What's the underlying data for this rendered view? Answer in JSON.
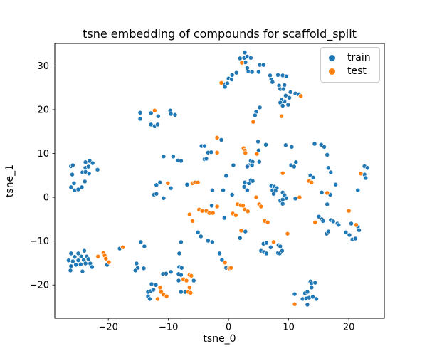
{
  "chart_data": {
    "type": "scatter",
    "title": "tsne embedding of compounds for scaffold_split",
    "xlabel": "tsne_0",
    "ylabel": "tsne_1",
    "xlim": [
      -28.9,
      25.9
    ],
    "ylim": [
      -27.6,
      35.1
    ],
    "xticks": {
      "values": [
        -20,
        -10,
        0,
        10,
        20
      ],
      "labels": [
        "−20",
        "−10",
        "0",
        "10",
        "20"
      ]
    },
    "yticks": {
      "values": [
        -20,
        -10,
        0,
        10,
        20,
        30
      ],
      "labels": [
        "−20",
        "−10",
        "0",
        "10",
        "20",
        "30"
      ]
    },
    "grid": false,
    "legend_position": "upper right",
    "marker": {
      "radius": 3.1,
      "edge_color": "#ffffff"
    },
    "axis_color": "#000000",
    "background_color": "#ffffff",
    "series": [
      {
        "name": "train",
        "color": "#1f77b4",
        "points": [
          [
            -14.7,
            19.3
          ],
          [
            -14.7,
            17.9
          ],
          [
            -12.9,
            19.2
          ],
          [
            -11.7,
            18.5
          ],
          [
            -12.9,
            16.6
          ],
          [
            -12.3,
            16.2
          ],
          [
            -11.8,
            16.6
          ],
          [
            -9.7,
            19.8
          ],
          [
            -9.6,
            19.0
          ],
          [
            -8.9,
            18.8
          ],
          [
            2.7,
            33.0
          ],
          [
            1.9,
            31.7
          ],
          [
            2.6,
            31.8
          ],
          [
            3.1,
            32.1
          ],
          [
            3.7,
            31.8
          ],
          [
            2.8,
            30.8
          ],
          [
            5.2,
            30.2
          ],
          [
            5.8,
            30.2
          ],
          [
            3.3,
            28.7
          ],
          [
            3.9,
            28.6
          ],
          [
            5.0,
            28.6
          ],
          [
            3.1,
            29.5
          ],
          [
            1.3,
            28.4
          ],
          [
            0.6,
            27.9
          ],
          [
            0.0,
            27.1
          ],
          [
            0.5,
            26.9
          ],
          [
            -0.6,
            25.8
          ],
          [
            -0.2,
            26.0
          ],
          [
            -0.6,
            25.2
          ],
          [
            6.9,
            27.8
          ],
          [
            7.1,
            26.9
          ],
          [
            7.3,
            26.3
          ],
          [
            8.2,
            27.9
          ],
          [
            8.4,
            25.5
          ],
          [
            8.6,
            24.7
          ],
          [
            9.0,
            27.8
          ],
          [
            9.6,
            27.6
          ],
          [
            9.3,
            25.6
          ],
          [
            9.1,
            24.7
          ],
          [
            10.3,
            24.0
          ],
          [
            9.5,
            23.2
          ],
          [
            10.1,
            22.7
          ],
          [
            11.1,
            23.7
          ],
          [
            11.7,
            23.5
          ],
          [
            9.3,
            21.9
          ],
          [
            9.9,
            21.1
          ],
          [
            8.8,
            22.2
          ],
          [
            8.6,
            21.6
          ],
          [
            9.0,
            20.9
          ],
          [
            5.2,
            20.5
          ],
          [
            4.6,
            19.5
          ],
          [
            4.4,
            18.7
          ],
          [
            -26.2,
            7.1
          ],
          [
            -25.9,
            7.3
          ],
          [
            -26.0,
            5.2
          ],
          [
            -23.8,
            8.0
          ],
          [
            -23.1,
            8.3
          ],
          [
            -22.6,
            7.8
          ],
          [
            -23.8,
            6.7
          ],
          [
            -23.3,
            7.0
          ],
          [
            -24.3,
            5.7
          ],
          [
            -23.8,
            5.8
          ],
          [
            -23.2,
            5.4
          ],
          [
            -21.8,
            6.3
          ],
          [
            -23.9,
            3.6
          ],
          [
            -25.7,
            3.2
          ],
          [
            -26.2,
            2.3
          ],
          [
            -25.6,
            1.6
          ],
          [
            -25.0,
            1.8
          ],
          [
            -24.4,
            2.3
          ],
          [
            -10.8,
            9.3
          ],
          [
            -12.0,
            2.8
          ],
          [
            -11.4,
            3.4
          ],
          [
            -9.6,
            2.1
          ],
          [
            -12.4,
            0.6
          ],
          [
            -12.0,
            0.8
          ],
          [
            -10.8,
            -0.2
          ],
          [
            -1.2,
            13.1
          ],
          [
            -4.5,
            11.7
          ],
          [
            -4.0,
            11.7
          ],
          [
            -3.4,
            10.2
          ],
          [
            -2.9,
            10.3
          ],
          [
            -4.0,
            8.7
          ],
          [
            -3.7,
            8.8
          ],
          [
            -9.2,
            9.3
          ],
          [
            -8.4,
            8.4
          ],
          [
            -7.9,
            8.3
          ],
          [
            4.9,
            12.7
          ],
          [
            6.2,
            12.0
          ],
          [
            5.0,
            10.7
          ],
          [
            3.7,
            8.3
          ],
          [
            4.0,
            8.1
          ],
          [
            3.4,
            7.3
          ],
          [
            3.9,
            7.3
          ],
          [
            3.1,
            7.0
          ],
          [
            5.1,
            8.1
          ],
          [
            0.8,
            7.3
          ],
          [
            -0.4,
            4.9
          ],
          [
            7.1,
            2.6
          ],
          [
            7.6,
            2.4
          ],
          [
            8.0,
            2.1
          ],
          [
            7.3,
            1.6
          ],
          [
            7.8,
            1.5
          ],
          [
            7.5,
            0.8
          ],
          [
            8.6,
            -0.8
          ],
          [
            9.0,
            -1.5
          ],
          [
            -6.9,
            2.9
          ],
          [
            -2.7,
            1.6
          ],
          [
            -0.9,
            1.6
          ],
          [
            0.6,
            0.6
          ],
          [
            2.7,
            3.4
          ],
          [
            3.4,
            3.2
          ],
          [
            2.6,
            2.4
          ],
          [
            3.1,
            1.6
          ],
          [
            3.7,
            3.9
          ],
          [
            4.0,
            3.7
          ],
          [
            -2.8,
            -1.9
          ],
          [
            -0.7,
            -4.7
          ],
          [
            10.5,
            11.5
          ],
          [
            9.5,
            11.9
          ],
          [
            14.3,
            12.2
          ],
          [
            15.4,
            12.0
          ],
          [
            15.9,
            11.5
          ],
          [
            16.4,
            9.7
          ],
          [
            10.4,
            7.3
          ],
          [
            11.2,
            8.0
          ],
          [
            10.9,
            7.0
          ],
          [
            16.6,
            6.7
          ],
          [
            17.0,
            5.7
          ],
          [
            13.6,
            5.0
          ],
          [
            14.1,
            4.5
          ],
          [
            22.6,
            7.1
          ],
          [
            23.1,
            6.7
          ],
          [
            22.6,
            5.2
          ],
          [
            22.8,
            4.4
          ],
          [
            15.5,
            1.1
          ],
          [
            16.9,
            0.6
          ],
          [
            17.8,
            2.9
          ],
          [
            21.5,
            1.6
          ],
          [
            9.0,
            1.1
          ],
          [
            9.3,
            0.5
          ],
          [
            9.6,
            -0.2
          ],
          [
            9.0,
            -0.5
          ],
          [
            11.1,
            -0.3
          ],
          [
            16.4,
            -1.6
          ],
          [
            15.0,
            -4.4
          ],
          [
            15.5,
            -5.0
          ],
          [
            15.7,
            -5.4
          ],
          [
            17.0,
            -5.2
          ],
          [
            17.4,
            -5.5
          ],
          [
            18.1,
            -6.0
          ],
          [
            18.3,
            -6.3
          ],
          [
            20.4,
            -6.0
          ],
          [
            21.5,
            -6.7
          ],
          [
            -5.1,
            -8.0
          ],
          [
            -4.6,
            -8.9
          ],
          [
            1.9,
            -9.3
          ],
          [
            2.8,
            -7.8
          ],
          [
            -3.4,
            -9.9
          ],
          [
            -2.7,
            -10.2
          ],
          [
            -7.9,
            -10.2
          ],
          [
            -8.2,
            -12.8
          ],
          [
            -1.5,
            -12.8
          ],
          [
            -1.1,
            -14.3
          ],
          [
            -0.4,
            -16.1
          ],
          [
            5.8,
            -10.6
          ],
          [
            6.3,
            -10.4
          ],
          [
            8.3,
            -10.9
          ],
          [
            8.6,
            -11.2
          ],
          [
            5.4,
            -12.2
          ],
          [
            5.9,
            -12.5
          ],
          [
            6.3,
            -12.8
          ],
          [
            7.0,
            -11.4
          ],
          [
            8.2,
            -12.7
          ],
          [
            8.5,
            -12.8
          ],
          [
            8.9,
            -12.2
          ],
          [
            -9.6,
            -17.0
          ],
          [
            -8.2,
            -15.9
          ],
          [
            -7.8,
            -16.1
          ],
          [
            -8.3,
            -17.5
          ],
          [
            -7.9,
            -17.7
          ],
          [
            -8.3,
            -19.0
          ],
          [
            -5.8,
            -19.0
          ],
          [
            -7.9,
            -21.6
          ],
          [
            -7.2,
            -21.6
          ],
          [
            -26.2,
            -12.8
          ],
          [
            -25.0,
            -12.8
          ],
          [
            -24.0,
            -12.2
          ],
          [
            -25.6,
            -13.6
          ],
          [
            -24.5,
            -13.5
          ],
          [
            -23.6,
            -13.5
          ],
          [
            -26.6,
            -14.4
          ],
          [
            -25.9,
            -14.6
          ],
          [
            -25.0,
            -14.4
          ],
          [
            -24.1,
            -14.3
          ],
          [
            -23.3,
            -14.1
          ],
          [
            -26.2,
            -15.7
          ],
          [
            -25.4,
            -15.4
          ],
          [
            -24.6,
            -15.3
          ],
          [
            -23.8,
            -15.1
          ],
          [
            -23.0,
            -15.1
          ],
          [
            -26.3,
            -16.7
          ],
          [
            -24.3,
            -16.9
          ],
          [
            -22.7,
            -15.9
          ],
          [
            -20.2,
            -15.4
          ],
          [
            -18.1,
            -11.7
          ],
          [
            -14.6,
            -10.2
          ],
          [
            -14.0,
            -11.2
          ],
          [
            -15.3,
            -15.1
          ],
          [
            -15.1,
            -16.1
          ],
          [
            -15.5,
            -16.7
          ],
          [
            -14.1,
            -16.2
          ],
          [
            -10.9,
            -17.5
          ],
          [
            -10.4,
            -17.4
          ],
          [
            -12.8,
            -19.8
          ],
          [
            -12.1,
            -20.0
          ],
          [
            -13.4,
            -21.6
          ],
          [
            -12.9,
            -21.4
          ],
          [
            -12.5,
            -21.1
          ],
          [
            -13.4,
            -22.6
          ],
          [
            -13.1,
            -23.2
          ],
          [
            16.3,
            -8.3
          ],
          [
            16.6,
            -7.8
          ],
          [
            19.5,
            -8.0
          ],
          [
            20.1,
            -8.6
          ],
          [
            20.6,
            -9.6
          ],
          [
            21.1,
            -9.4
          ],
          [
            21.7,
            -7.5
          ],
          [
            13.6,
            -19.2
          ],
          [
            13.8,
            -19.6
          ],
          [
            14.4,
            -19.5
          ],
          [
            13.8,
            -20.6
          ],
          [
            11.0,
            -22.1
          ],
          [
            12.7,
            -21.9
          ],
          [
            13.1,
            -21.6
          ],
          [
            12.3,
            -23.2
          ],
          [
            12.9,
            -23.1
          ],
          [
            13.4,
            -22.9
          ],
          [
            14.0,
            -22.7
          ],
          [
            14.6,
            -23.2
          ],
          [
            13.1,
            -24.5
          ]
        ]
      },
      {
        "name": "test",
        "color": "#ff7f0e",
        "points": [
          [
            -12.3,
            19.8
          ],
          [
            2.2,
            30.7
          ],
          [
            -1.2,
            26.1
          ],
          [
            -1.9,
            13.6
          ],
          [
            -1.9,
            10.2
          ],
          [
            2.5,
            11.2
          ],
          [
            2.7,
            10.7
          ],
          [
            2.8,
            10.1
          ],
          [
            4.7,
            9.9
          ],
          [
            4.1,
            17.2
          ],
          [
            8.8,
            18.5
          ],
          [
            12.0,
            23.1
          ],
          [
            9.0,
            5.5
          ],
          [
            -10.1,
            3.2
          ],
          [
            -6.0,
            3.2
          ],
          [
            -5.6,
            3.4
          ],
          [
            -5.1,
            3.4
          ],
          [
            4.6,
            0.0
          ],
          [
            5.1,
            -1.6
          ],
          [
            5.4,
            -2.1
          ],
          [
            1.5,
            -1.6
          ],
          [
            2.0,
            -1.8
          ],
          [
            2.4,
            -1.9
          ],
          [
            2.7,
            -2.8
          ],
          [
            3.2,
            -3.2
          ],
          [
            -6.5,
            -3.9
          ],
          [
            -6.0,
            -5.4
          ],
          [
            -4.9,
            -2.8
          ],
          [
            -4.4,
            -3.1
          ],
          [
            -3.7,
            -3.1
          ],
          [
            -3.2,
            -3.6
          ],
          [
            -2.6,
            -3.6
          ],
          [
            -1.9,
            -2.1
          ],
          [
            0.7,
            -3.7
          ],
          [
            1.2,
            -4.1
          ],
          [
            6.0,
            -5.4
          ],
          [
            6.5,
            -5.7
          ],
          [
            13.4,
            3.7
          ],
          [
            13.8,
            3.4
          ],
          [
            16.4,
            1.0
          ],
          [
            22.0,
            5.4
          ],
          [
            11.8,
            0.0
          ],
          [
            20.0,
            -3.1
          ],
          [
            14.4,
            -5.7
          ],
          [
            21.2,
            -6.3
          ],
          [
            2.1,
            -7.6
          ],
          [
            9.8,
            -8.3
          ],
          [
            7.5,
            -10.2
          ],
          [
            -0.6,
            -14.9
          ],
          [
            0.1,
            -16.2
          ],
          [
            0.4,
            -16.1
          ],
          [
            -6.5,
            -17.7
          ],
          [
            -6.2,
            -17.9
          ],
          [
            -7.5,
            -18.7
          ],
          [
            -7.0,
            -19.0
          ],
          [
            -6.5,
            -20.6
          ],
          [
            -6.7,
            -21.6
          ],
          [
            -6.3,
            -21.8
          ],
          [
            -21.7,
            -13.5
          ],
          [
            -20.8,
            -12.7
          ],
          [
            -20.6,
            -13.3
          ],
          [
            -20.4,
            -14.0
          ],
          [
            -19.9,
            -14.8
          ],
          [
            -17.6,
            -11.4
          ],
          [
            -11.4,
            -20.6
          ],
          [
            -11.2,
            -21.6
          ],
          [
            -10.8,
            -22.2
          ],
          [
            -11.8,
            -23.2
          ],
          [
            -10.3,
            -22.6
          ],
          [
            11.0,
            -24.4
          ]
        ]
      }
    ]
  },
  "legend": {
    "items": [
      {
        "label": "train"
      },
      {
        "label": "test"
      }
    ]
  }
}
